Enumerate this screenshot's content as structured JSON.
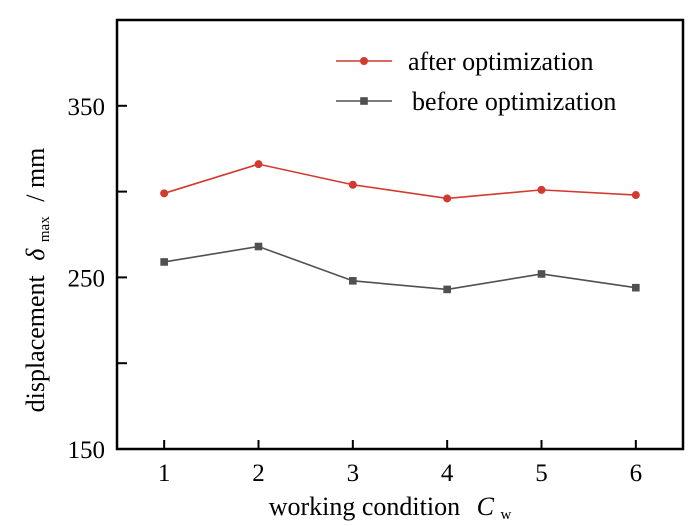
{
  "chart_data": {
    "type": "line",
    "xlabel": "working condition",
    "xlabel_var": "C",
    "xlabel_sub": "w",
    "ylabel": "displacement",
    "ylabel_var": "δ",
    "ylabel_sub": "max",
    "ylabel_unit": "/ mm",
    "x": [
      1,
      2,
      3,
      4,
      5,
      6
    ],
    "x_ticks": [
      "1",
      "2",
      "3",
      "4",
      "5",
      "6"
    ],
    "xlim": [
      0.5,
      6.5
    ],
    "ylim": [
      150,
      400
    ],
    "y_ticks": [
      150,
      250,
      350
    ],
    "y_tick_labels": [
      "150",
      "250",
      "350"
    ],
    "y_minor_ticks": [
      200,
      300
    ],
    "grid": false,
    "legend": "top-right",
    "series": [
      {
        "name": "after optimization",
        "values": [
          299,
          316,
          304,
          296,
          301,
          298
        ],
        "color": "#d23a2f",
        "marker": "circle"
      },
      {
        "name": "before optimization",
        "values": [
          259,
          268,
          248,
          243,
          252,
          244
        ],
        "color": "#505050",
        "marker": "square"
      }
    ]
  }
}
